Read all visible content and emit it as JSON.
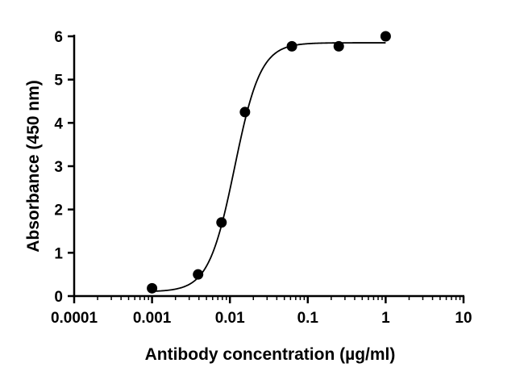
{
  "chart_data": {
    "type": "scatter",
    "title": "",
    "xlabel": "Antibody concentration (µg/ml)",
    "ylabel": "Absorbance (450 nm)",
    "x_scale": "log",
    "xlim": [
      0.0001,
      10
    ],
    "ylim": [
      0,
      6
    ],
    "x_ticks": [
      0.0001,
      0.001,
      0.01,
      0.1,
      1,
      10
    ],
    "x_tick_labels": [
      "0.0001",
      "0.001",
      "0.01",
      "0.1",
      "1",
      "10"
    ],
    "y_ticks": [
      0,
      1,
      2,
      3,
      4,
      5,
      6
    ],
    "y_tick_labels": [
      "0",
      "1",
      "2",
      "3",
      "4",
      "5",
      "6"
    ],
    "grid": false,
    "legend": "none",
    "marker_color": "#000000",
    "series": [
      {
        "x": [
          0.001,
          0.0039,
          0.0078,
          0.0156,
          0.0625,
          0.25,
          1
        ],
        "y": [
          0.18,
          0.5,
          1.7,
          4.25,
          5.77,
          5.77,
          6.0
        ]
      }
    ],
    "fit_curve": {
      "model": "sigmoidal",
      "bottom": 0.1,
      "top": 5.85,
      "ec50": 0.0115,
      "hill": 2.6,
      "x_range": [
        0.001,
        1
      ]
    }
  }
}
